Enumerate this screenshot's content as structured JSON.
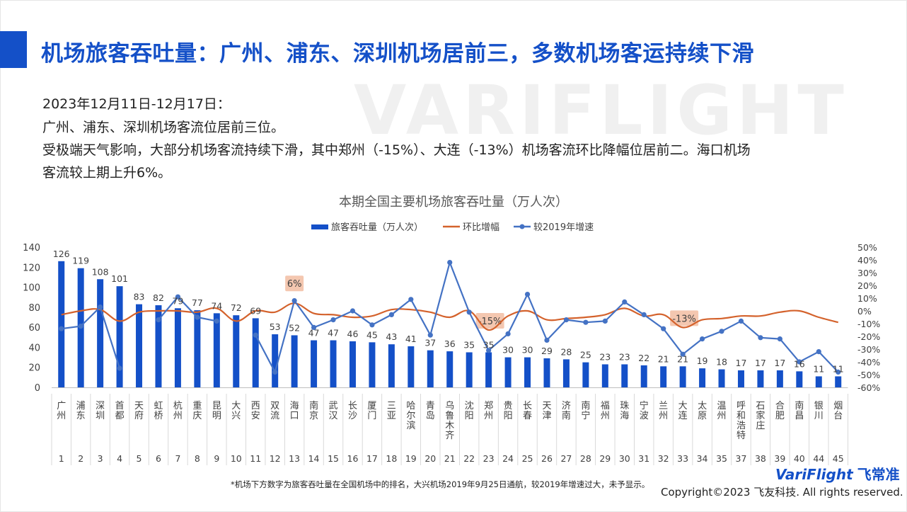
{
  "title": "机场旅客吞吐量：广州、浦东、深圳机场居前三，多数机场客运持续下滑",
  "watermark": "VARIFLIGHT",
  "description": [
    "2023年12月11日-12月17日：",
    "广州、浦东、深圳机场客流位居前三位。",
    "受极端天气影响，大部分机场客流持续下滑，其中郑州（-15%）、大连（-13%）机场客流环比降幅位居前二。海口机场",
    "客流较上期上升6%。"
  ],
  "footnote": "*机场下方数字为旅客吞吐量在全国机场中的排名，大兴机场2019年9月25日通航，较2019年增速过大，未予显示。",
  "copyright": "Copyright©2023 飞友科技. All rights reserved.",
  "logo": {
    "brand": "VariFlight",
    "cn": "飞常准"
  },
  "colors": {
    "bar": "#1450c8",
    "mom": "#d4622c",
    "vs2019": "#4472c4",
    "callout": "#f4c7b0"
  },
  "chart_data": {
    "type": "bar",
    "title": "本期全国主要机场旅客吞吐量（万人次）",
    "legend": [
      "旅客吞吐量（万人次）",
      "环比增幅",
      "较2019年增速"
    ],
    "legend_position": "top",
    "categories": [
      "广州",
      "浦东",
      "深圳",
      "首都",
      "天府",
      "虹桥",
      "杭州",
      "重庆",
      "昆明",
      "大兴",
      "西安",
      "双流",
      "海口",
      "南京",
      "武汉",
      "长沙",
      "厦门",
      "三亚",
      "哈尔滨",
      "青岛",
      "乌鲁木齐",
      "沈阳",
      "郑州",
      "贵阳",
      "长春",
      "天津",
      "济南",
      "南宁",
      "福州",
      "珠海",
      "宁波",
      "兰州",
      "大连",
      "太原",
      "温州",
      "呼和浩特",
      "石家庄",
      "合肥",
      "南昌",
      "银川",
      "烟台"
    ],
    "ranks": [
      "1",
      "2",
      "3",
      "4",
      "5",
      "6",
      "7",
      "8",
      "9",
      "10",
      "11",
      "12",
      "13",
      "14",
      "15",
      "16",
      "17",
      "18",
      "19",
      "20",
      "21",
      "22",
      "23",
      "24",
      "25",
      "26",
      "27",
      "28",
      "29",
      "30",
      "31",
      "32",
      "33",
      "34",
      "35",
      "37",
      "38",
      "39",
      "40",
      "44",
      "45"
    ],
    "y_left": {
      "min": 0,
      "max": 140,
      "ticks": [
        "0",
        "20",
        "40",
        "60",
        "80",
        "100",
        "120",
        "140"
      ]
    },
    "y_right": {
      "min": -60,
      "max": 50,
      "ticks": [
        "-60%",
        "-50%",
        "-40%",
        "-30%",
        "-20%",
        "-10%",
        "0%",
        "10%",
        "20%",
        "30%",
        "40%",
        "50%"
      ]
    },
    "series": [
      {
        "name": "旅客吞吐量（万人次）",
        "type": "bar",
        "axis": "left",
        "values": [
          126,
          119,
          108,
          101,
          83,
          82,
          79,
          77,
          74,
          72,
          69,
          53,
          52,
          47,
          47,
          46,
          45,
          43,
          41,
          37,
          36,
          35,
          35,
          30,
          30,
          29,
          28,
          25,
          23,
          23,
          22,
          21,
          21,
          19,
          18,
          17,
          17,
          17,
          16,
          11,
          11
        ]
      },
      {
        "name": "环比增幅",
        "type": "line",
        "axis": "right",
        "values": [
          -3,
          0,
          1,
          -8,
          -1,
          0,
          0,
          -1,
          2,
          -8,
          0,
          -1,
          6,
          -2,
          -3,
          -5,
          -4,
          1,
          1,
          -1,
          -5,
          0,
          -15,
          -4,
          0,
          -7,
          -6,
          -5,
          -3,
          2,
          -4,
          -3,
          -13,
          -7,
          -6,
          -4,
          -4,
          -1,
          0,
          -5,
          -9
        ]
      },
      {
        "name": "较2019年增速",
        "type": "line",
        "axis": "right",
        "values": [
          -14,
          -12,
          3,
          -45,
          null,
          -7,
          11,
          -5,
          -8,
          null,
          -19,
          -48,
          8,
          -13,
          -7,
          0,
          -11,
          -3,
          9,
          -19,
          38,
          -1,
          -31,
          -18,
          13,
          -23,
          -7,
          -9,
          -8,
          7,
          -3,
          -14,
          -34,
          -22,
          -16,
          -8,
          -21,
          -22,
          -40,
          -32,
          -48
        ]
      }
    ],
    "callouts": [
      {
        "category": "海口",
        "text": "6%"
      },
      {
        "category": "郑州",
        "text": "-15%"
      },
      {
        "category": "大连",
        "text": "-13%"
      }
    ]
  }
}
